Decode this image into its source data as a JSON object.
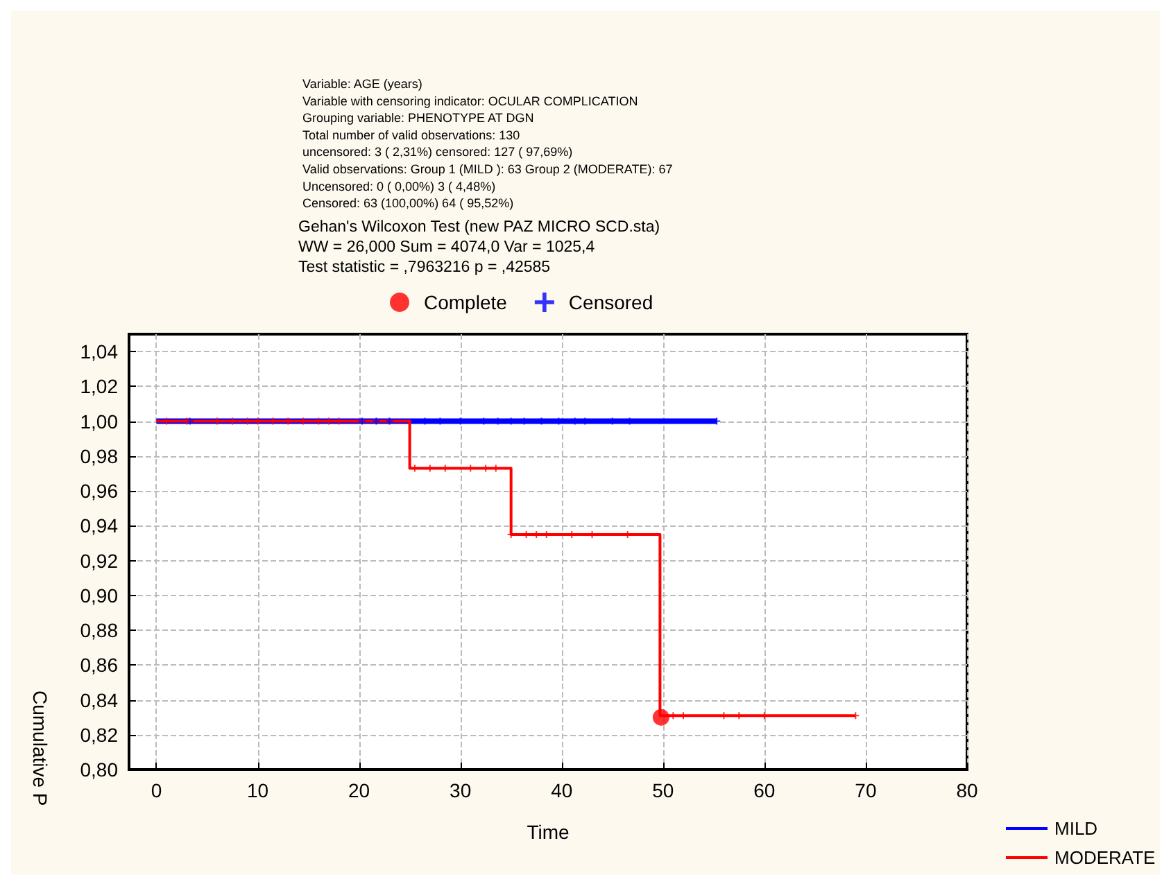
{
  "chart_data": {
    "type": "step",
    "ylabel": "Cumulative P",
    "xlabel": "Time",
    "annotations": [
      "Variable: AGE (years)",
      "Variable with censoring indicator: OCULAR COMPLICATION",
      "Grouping variable: PHENOTYPE AT DGN",
      "Total number of valid observations: 130",
      "uncensored: 3 ( 2,31%) censored: 127 ( 97,69%)",
      "Valid observations: Group 1 (MILD ): 63 Group 2 (MODERATE): 67",
      "Uncensored: 0 ( 0,00%) 3 ( 4,48%)",
      "Censored: 63 (100,00%) 64 ( 95,52%)",
      "Gehan's Wilcoxon Test (new PAZ MICRO SCD.sta)",
      "WW = 26,000 Sum = 4074,0 Var = 1025,4",
      "Test statistic = ,7963216 p = ,42585"
    ],
    "xlim": [
      -2.7,
      80
    ],
    "xticks": [
      0,
      10,
      20,
      30,
      40,
      50,
      60,
      70,
      80
    ],
    "ylim": [
      0.8,
      1.05
    ],
    "yticks": [
      {
        "value": 0.8,
        "label": "0,80"
      },
      {
        "value": 0.82,
        "label": "0,82"
      },
      {
        "value": 0.84,
        "label": "0,84"
      },
      {
        "value": 0.86,
        "label": "0,86"
      },
      {
        "value": 0.88,
        "label": "0,88"
      },
      {
        "value": 0.9,
        "label": "0,90"
      },
      {
        "value": 0.92,
        "label": "0,92"
      },
      {
        "value": 0.94,
        "label": "0,94"
      },
      {
        "value": 0.96,
        "label": "0,96"
      },
      {
        "value": 0.98,
        "label": "0,98"
      },
      {
        "value": 1.0,
        "label": "1,00"
      },
      {
        "value": 1.02,
        "label": "1,02"
      },
      {
        "value": 1.04,
        "label": "1,04"
      }
    ],
    "grid": true,
    "legend": "bottom right",
    "line_style": "solid",
    "series": [
      {
        "name": "MILD",
        "color": "#0000ff",
        "x": [
          0,
          55.3
        ],
        "values": [
          1,
          1
        ]
      },
      {
        "name": "MODERATE",
        "color": "#ff0000",
        "x": [
          0,
          25,
          35,
          49.7,
          69
        ],
        "values": [
          1,
          0.973,
          0.935,
          0.831,
          0.831
        ]
      },
      {
        "name": "Complete",
        "type": "scatter",
        "marker": "circle",
        "color": "#ff0000",
        "x": [
          49.8
        ],
        "values": [
          0.83
        ]
      },
      {
        "name": "Censored",
        "type": "scatter",
        "marker": "cross",
        "color": "#0000ff",
        "x": [
          3.3,
          20.3,
          21.7,
          23,
          26.5,
          28,
          30,
          32.3,
          33.7,
          35,
          36.3,
          38,
          39.7,
          41.3,
          42.3,
          45,
          46.7,
          55.3,
          1,
          3,
          6,
          7.5,
          9,
          10,
          11.5,
          13,
          14.5,
          16,
          17,
          18,
          25.5,
          27,
          28.5,
          31,
          32.5,
          33.5,
          35,
          36.5,
          37.5,
          38.5,
          41,
          43,
          46.5,
          51,
          52,
          56,
          57.5,
          60,
          69
        ],
        "values": [
          1,
          1,
          1,
          1,
          1,
          1,
          1,
          1,
          1,
          1,
          1,
          1,
          1,
          1,
          1,
          1,
          1,
          1,
          1,
          1,
          1,
          1,
          1,
          1,
          1,
          1,
          1,
          1,
          1,
          1,
          0.973,
          0.973,
          0.973,
          0.973,
          0.973,
          0.973,
          0.935,
          0.935,
          0.935,
          0.935,
          0.935,
          0.935,
          0.935,
          0.831,
          0.831,
          0.831,
          0.831,
          0.831,
          0.831
        ],
        "colors": [
          "#0000ff",
          "#0000ff",
          "#0000ff",
          "#0000ff",
          "#0000ff",
          "#0000ff",
          "#0000ff",
          "#0000ff",
          "#0000ff",
          "#0000ff",
          "#0000ff",
          "#0000ff",
          "#0000ff",
          "#0000ff",
          "#0000ff",
          "#0000ff",
          "#0000ff",
          "#0000ff",
          "#ff0000",
          "#ff0000",
          "#ff0000",
          "#ff0000",
          "#ff0000",
          "#ff0000",
          "#ff0000",
          "#ff0000",
          "#ff0000",
          "#ff0000",
          "#ff0000",
          "#ff0000",
          "#ff0000",
          "#ff0000",
          "#ff0000",
          "#ff0000",
          "#ff0000",
          "#ff0000",
          "#ff0000",
          "#ff0000",
          "#ff0000",
          "#ff0000",
          "#ff0000",
          "#ff0000",
          "#ff0000",
          "#ff0000",
          "#ff0000",
          "#ff0000",
          "#ff0000",
          "#ff0000",
          "#ff0000"
        ]
      }
    ]
  }
}
